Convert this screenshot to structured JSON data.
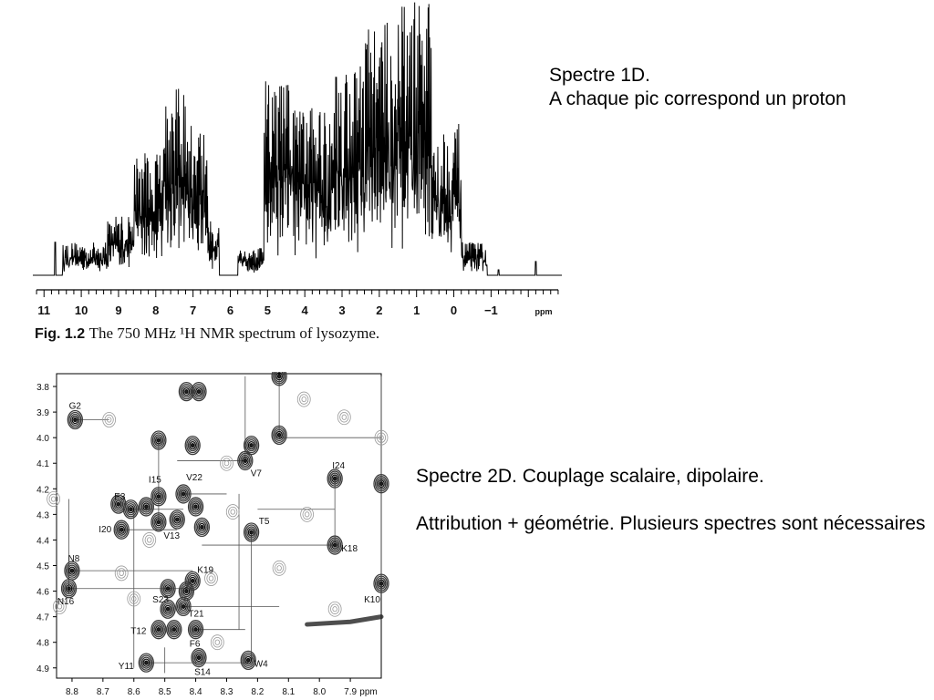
{
  "notes": {
    "spectre_1d": [
      "Spectre 1D.",
      "A chaque pic correspond un proton"
    ],
    "spectre_2d": [
      "Spectre 2D. Couplage scalaire, dipolaire.",
      "Attribution + géométrie. Plusieurs spectres sont nécessaires"
    ]
  },
  "figure_caption": {
    "label": "Fig. 1.2",
    "text": "The 750 MHz ¹H NMR spectrum of lysozyme."
  },
  "colors": {
    "ink": "#000000",
    "contour": "#1a1a1a",
    "contour_light": "#9a9a9a"
  },
  "chart_data": [
    {
      "type": "line",
      "title": "",
      "xlabel": "ppm",
      "ylabel": "",
      "xlim": [
        11.3,
        -2.9
      ],
      "x_reversed": true,
      "grid": false,
      "xticks": [
        11,
        10,
        9,
        8,
        7,
        6,
        5,
        4,
        3,
        2,
        1,
        0,
        -1
      ],
      "peak_groups": [
        {
          "range": [
            10.5,
            9.3
          ],
          "height": 0.12
        },
        {
          "range": [
            9.3,
            8.6
          ],
          "height": 0.22
        },
        {
          "range": [
            8.6,
            7.9
          ],
          "height": 0.45
        },
        {
          "range": [
            7.9,
            7.2
          ],
          "height": 0.68
        },
        {
          "range": [
            7.2,
            6.6
          ],
          "height": 0.55
        },
        {
          "range": [
            6.6,
            6.3
          ],
          "height": 0.2
        },
        {
          "range": [
            5.8,
            5.1
          ],
          "height": 0.1
        },
        {
          "range": [
            5.1,
            4.3
          ],
          "height": 0.72
        },
        {
          "range": [
            4.3,
            3.3
          ],
          "height": 0.62
        },
        {
          "range": [
            3.3,
            2.4
          ],
          "height": 0.78
        },
        {
          "range": [
            2.4,
            1.6
          ],
          "height": 0.92
        },
        {
          "range": [
            1.6,
            0.6
          ],
          "height": 1.0
        },
        {
          "range": [
            0.6,
            -0.2
          ],
          "height": 0.55
        },
        {
          "range": [
            -0.2,
            -0.9
          ],
          "height": 0.12
        }
      ],
      "isolated_peaks": [
        {
          "x": 10.7,
          "height": 0.12
        },
        {
          "x": -1.2,
          "height": 0.02
        },
        {
          "x": -2.2,
          "height": 0.05
        }
      ]
    },
    {
      "type": "scatter",
      "title": "",
      "xlabel": "ppm",
      "ylabel": "",
      "xlim": [
        8.85,
        7.8
      ],
      "ylim": [
        3.75,
        4.94
      ],
      "x_reversed": true,
      "y_reversed": true,
      "xticks": [
        8.8,
        8.7,
        8.6,
        8.5,
        8.4,
        8.3,
        8.2,
        8.1,
        8.0,
        7.9
      ],
      "yticks": [
        3.8,
        3.9,
        4.0,
        4.1,
        4.2,
        4.3,
        4.4,
        4.5,
        4.6,
        4.7,
        4.8,
        4.9
      ],
      "labeled_peaks": [
        {
          "label": "G2",
          "x": 8.79,
          "y": 3.93,
          "strength": 1.0
        },
        {
          "label": "E3",
          "x": 8.61,
          "y": 4.28,
          "strength": 1.0
        },
        {
          "label": "W4",
          "x": 8.23,
          "y": 4.87,
          "strength": 1.0
        },
        {
          "label": "T5",
          "x": 8.22,
          "y": 4.37,
          "strength": 1.0
        },
        {
          "label": "F6",
          "x": 8.4,
          "y": 4.75,
          "strength": 0.8
        },
        {
          "label": "V7",
          "x": 8.24,
          "y": 4.09,
          "strength": 1.0
        },
        {
          "label": "N8",
          "x": 8.8,
          "y": 4.52,
          "strength": 1.0
        },
        {
          "label": "K10",
          "x": 7.8,
          "y": 4.57,
          "strength": 1.0
        },
        {
          "label": "Y11",
          "x": 8.56,
          "y": 4.88,
          "strength": 1.0
        },
        {
          "label": "T12",
          "x": 8.52,
          "y": 4.75,
          "strength": 1.0
        },
        {
          "label": "V13",
          "x": 8.46,
          "y": 4.32,
          "strength": 1.0
        },
        {
          "label": "S14",
          "x": 8.39,
          "y": 4.86,
          "strength": 1.0
        },
        {
          "label": "I15",
          "x": 8.52,
          "y": 4.23,
          "strength": 1.0
        },
        {
          "label": "N16",
          "x": 8.81,
          "y": 4.59,
          "strength": 1.0
        },
        {
          "label": "K18",
          "x": 7.95,
          "y": 4.42,
          "strength": 1.0
        },
        {
          "label": "K19",
          "x": 8.41,
          "y": 4.56,
          "strength": 1.0
        },
        {
          "label": "I20",
          "x": 8.64,
          "y": 4.36,
          "strength": 1.0
        },
        {
          "label": "T21",
          "x": 8.44,
          "y": 4.66,
          "strength": 1.0
        },
        {
          "label": "V22",
          "x": 8.44,
          "y": 4.22,
          "strength": 1.0
        },
        {
          "label": "S23",
          "x": 8.49,
          "y": 4.67,
          "strength": 1.0
        },
        {
          "label": "I24",
          "x": 7.95,
          "y": 4.16,
          "strength": 1.0
        }
      ],
      "unlabeled_peaks": [
        {
          "x": 8.39,
          "y": 3.82,
          "strength": 1.0
        },
        {
          "x": 8.41,
          "y": 4.03,
          "strength": 1.0
        },
        {
          "x": 8.52,
          "y": 4.01,
          "strength": 0.9
        },
        {
          "x": 8.13,
          "y": 3.99,
          "strength": 0.9
        },
        {
          "x": 8.13,
          "y": 3.76,
          "strength": 0.8
        },
        {
          "x": 8.22,
          "y": 4.03,
          "strength": 0.8
        },
        {
          "x": 8.43,
          "y": 3.82,
          "strength": 0.7
        },
        {
          "x": 8.56,
          "y": 4.27,
          "strength": 0.9
        },
        {
          "x": 8.4,
          "y": 4.27,
          "strength": 0.6
        },
        {
          "x": 8.52,
          "y": 4.33,
          "strength": 0.6
        },
        {
          "x": 8.38,
          "y": 4.35,
          "strength": 0.6
        },
        {
          "x": 8.65,
          "y": 4.26,
          "strength": 0.7
        },
        {
          "x": 8.49,
          "y": 4.59,
          "strength": 0.7
        },
        {
          "x": 8.47,
          "y": 4.75,
          "strength": 0.8
        },
        {
          "x": 8.43,
          "y": 4.6,
          "strength": 0.7
        },
        {
          "x": 7.8,
          "y": 4.18,
          "strength": 0.8
        },
        {
          "x": 7.95,
          "y": 4.67,
          "strength": 0.3
        },
        {
          "x": 7.8,
          "y": 4.0,
          "strength": 0.3
        },
        {
          "x": 7.92,
          "y": 3.92,
          "strength": 0.3
        },
        {
          "x": 8.68,
          "y": 3.93,
          "strength": 0.3
        },
        {
          "x": 8.13,
          "y": 4.51,
          "strength": 0.3
        },
        {
          "x": 8.86,
          "y": 4.24,
          "strength": 0.3
        },
        {
          "x": 8.84,
          "y": 4.66,
          "strength": 0.3
        },
        {
          "x": 8.64,
          "y": 4.53,
          "strength": 0.3
        },
        {
          "x": 8.6,
          "y": 4.63,
          "strength": 0.3
        },
        {
          "x": 8.3,
          "y": 4.1,
          "strength": 0.3
        },
        {
          "x": 8.28,
          "y": 4.29,
          "strength": 0.3
        },
        {
          "x": 8.55,
          "y": 4.4,
          "strength": 0.3
        },
        {
          "x": 8.35,
          "y": 4.55,
          "strength": 0.3
        },
        {
          "x": 8.05,
          "y": 3.85,
          "strength": 0.3
        },
        {
          "x": 8.33,
          "y": 4.8,
          "strength": 0.3
        },
        {
          "x": 8.04,
          "y": 4.3,
          "strength": 0.3
        }
      ],
      "connectivity_segments": [
        [
          [
            8.79,
            3.93
          ],
          [
            8.68,
            3.93
          ]
        ],
        [
          [
            8.61,
            4.28
          ],
          [
            8.44,
            4.28
          ]
        ],
        [
          [
            8.64,
            4.36
          ],
          [
            8.46,
            4.36
          ]
        ],
        [
          [
            8.8,
            4.52
          ],
          [
            8.41,
            4.52
          ]
        ],
        [
          [
            8.81,
            4.59
          ],
          [
            8.41,
            4.59
          ]
        ],
        [
          [
            8.46,
            4.09
          ],
          [
            8.24,
            4.09
          ]
        ],
        [
          [
            8.38,
            4.42
          ],
          [
            7.95,
            4.42
          ]
        ],
        [
          [
            8.44,
            4.66
          ],
          [
            8.13,
            4.66
          ]
        ],
        [
          [
            8.24,
            3.76
          ],
          [
            8.24,
            4.09
          ]
        ],
        [
          [
            8.22,
            4.37
          ],
          [
            8.22,
            4.87
          ]
        ],
        [
          [
            8.4,
            4.75
          ],
          [
            8.24,
            4.75
          ]
        ],
        [
          [
            8.56,
            4.88
          ],
          [
            8.23,
            4.88
          ]
        ],
        [
          [
            8.13,
            3.77
          ],
          [
            8.13,
            4.0
          ]
        ],
        [
          [
            7.95,
            4.16
          ],
          [
            7.95,
            4.42
          ]
        ],
        [
          [
            8.81,
            4.24
          ],
          [
            8.81,
            4.61
          ]
        ],
        [
          [
            8.13,
            4.0
          ],
          [
            7.8,
            4.0
          ]
        ],
        [
          [
            8.52,
            4.01
          ],
          [
            8.52,
            4.33
          ]
        ],
        [
          [
            8.44,
            4.22
          ],
          [
            8.3,
            4.22
          ]
        ],
        [
          [
            8.26,
            4.22
          ],
          [
            8.26,
            4.75
          ]
        ],
        [
          [
            7.8,
            3.76
          ],
          [
            7.8,
            4.56
          ]
        ],
        [
          [
            8.6,
            4.28
          ],
          [
            8.6,
            4.9
          ]
        ],
        [
          [
            8.2,
            4.28
          ],
          [
            7.95,
            4.28
          ]
        ],
        [
          [
            8.5,
            4.82
          ],
          [
            8.5,
            4.92
          ]
        ]
      ],
      "diagonal_ridge": [
        [
          8.04,
          4.73
        ],
        [
          7.9,
          4.72
        ],
        [
          7.8,
          4.7
        ]
      ]
    }
  ]
}
